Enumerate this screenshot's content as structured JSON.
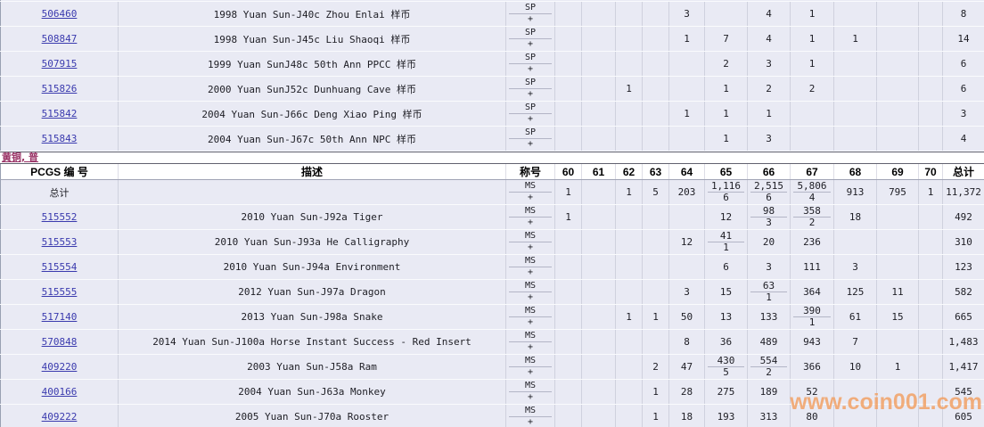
{
  "section_title": {
    "label": "黄铜, 普"
  },
  "watermark": {
    "text": "www.coin001.com"
  },
  "plus_label": "+",
  "grade_headers": [
    "60",
    "61",
    "62",
    "63",
    "64",
    "65",
    "66",
    "67",
    "68",
    "69",
    "70"
  ],
  "main_headers": {
    "pcgs": "PCGS 编 号",
    "desc": "描述",
    "designation": "称号",
    "total": "总计"
  },
  "top_table": {
    "rows": [
      {
        "pcgs": "506460",
        "link": true,
        "desc": "1998 Yuan Sun-J40c Zhou Enlai 样币",
        "designation": [
          "SP",
          "+"
        ],
        "grades": {
          "64": "3",
          "66": "4",
          "67": "1"
        },
        "total": "8"
      },
      {
        "pcgs": "508847",
        "link": true,
        "desc": "1998 Yuan Sun-J45c Liu Shaoqi 样币",
        "designation": [
          "SP",
          "+"
        ],
        "grades": {
          "64": "1",
          "65": "7",
          "66": "4",
          "67": "1",
          "68": "1"
        },
        "total": "14"
      },
      {
        "pcgs": "507915",
        "link": true,
        "desc": "1999 Yuan SunJ48c 50th Ann PPCC 样币",
        "designation": [
          "SP",
          "+"
        ],
        "grades": {
          "65": "2",
          "66": "3",
          "67": "1"
        },
        "total": "6"
      },
      {
        "pcgs": "515826",
        "link": true,
        "desc": "2000 Yuan SunJ52c Dunhuang Cave 样币",
        "designation": [
          "SP",
          "+"
        ],
        "grades": {
          "62": "1",
          "65": "1",
          "66": "2",
          "67": "2"
        },
        "total": "6"
      },
      {
        "pcgs": "515842",
        "link": true,
        "desc": "2004 Yuan Sun-J66c Deng Xiao Ping 样币",
        "designation": [
          "SP",
          "+"
        ],
        "grades": {
          "64": "1",
          "65": "1",
          "66": "1"
        },
        "total": "3"
      },
      {
        "pcgs": "515843",
        "link": true,
        "desc": "2004 Yuan Sun-J67c 50th Ann NPC 样币",
        "designation": [
          "SP",
          "+"
        ],
        "grades": {
          "65": "1",
          "66": "3"
        },
        "total": "4"
      }
    ]
  },
  "main_table": {
    "rows": [
      {
        "pcgs": "总计",
        "link": false,
        "desc": "",
        "designation": [
          "MS",
          "+"
        ],
        "grades": {
          "60": "1",
          "62": "1",
          "63": "5",
          "64": "203",
          "65": {
            "ms": "1,116",
            "plus": "6"
          },
          "66": {
            "ms": "2,515",
            "plus": "6"
          },
          "67": {
            "ms": "5,806",
            "plus": "4"
          },
          "68": "913",
          "69": "795",
          "70": "1"
        },
        "total": "11,372"
      },
      {
        "pcgs": "515552",
        "link": true,
        "desc": "2010 Yuan Sun-J92a Tiger",
        "designation": [
          "MS",
          "+"
        ],
        "grades": {
          "60": "1",
          "65": "12",
          "66": {
            "ms": "98",
            "plus": "3"
          },
          "67": {
            "ms": "358",
            "plus": "2"
          },
          "68": "18"
        },
        "total": "492"
      },
      {
        "pcgs": "515553",
        "link": true,
        "desc": "2010 Yuan Sun-J93a He Calligraphy",
        "designation": [
          "MS",
          "+"
        ],
        "grades": {
          "64": "12",
          "65": {
            "ms": "41",
            "plus": "1"
          },
          "66": "20",
          "67": "236"
        },
        "total": "310"
      },
      {
        "pcgs": "515554",
        "link": true,
        "desc": "2010 Yuan Sun-J94a Environment",
        "designation": [
          "MS",
          "+"
        ],
        "grades": {
          "65": "6",
          "66": "3",
          "67": "111",
          "68": "3"
        },
        "total": "123"
      },
      {
        "pcgs": "515555",
        "link": true,
        "desc": "2012 Yuan Sun-J97a Dragon",
        "designation": [
          "MS",
          "+"
        ],
        "grades": {
          "64": "3",
          "65": "15",
          "66": {
            "ms": "63",
            "plus": "1"
          },
          "67": "364",
          "68": "125",
          "69": "11"
        },
        "total": "582"
      },
      {
        "pcgs": "517140",
        "link": true,
        "desc": "2013 Yuan Sun-J98a Snake",
        "designation": [
          "MS",
          "+"
        ],
        "grades": {
          "62": "1",
          "63": "1",
          "64": "50",
          "65": "13",
          "66": "133",
          "67": {
            "ms": "390",
            "plus": "1"
          },
          "68": "61",
          "69": "15"
        },
        "total": "665"
      },
      {
        "pcgs": "570848",
        "link": true,
        "desc": "2014 Yuan Sun-J100a Horse Instant Success - Red Insert",
        "designation": [
          "MS",
          "+"
        ],
        "grades": {
          "64": "8",
          "65": "36",
          "66": "489",
          "67": "943",
          "68": "7"
        },
        "total": "1,483"
      },
      {
        "pcgs": "409220",
        "link": true,
        "desc": "2003 Yuan Sun-J58a Ram",
        "designation": [
          "MS",
          "+"
        ],
        "grades": {
          "63": "2",
          "64": "47",
          "65": {
            "ms": "430",
            "plus": "5"
          },
          "66": {
            "ms": "554",
            "plus": "2"
          },
          "67": "366",
          "68": "10",
          "69": "1"
        },
        "total": "1,417"
      },
      {
        "pcgs": "400166",
        "link": true,
        "desc": "2004 Yuan Sun-J63a Monkey",
        "designation": [
          "MS",
          "+"
        ],
        "grades": {
          "63": "1",
          "64": "28",
          "65": "275",
          "66": "189",
          "67": "52"
        },
        "total": "545"
      },
      {
        "pcgs": "409222",
        "link": true,
        "desc": "2005 Yuan Sun-J70a Rooster",
        "designation": [
          "MS",
          "+"
        ],
        "grades": {
          "63": "1",
          "64": "18",
          "65": "193",
          "66": "313",
          "67": "80"
        },
        "total": "605"
      }
    ]
  }
}
